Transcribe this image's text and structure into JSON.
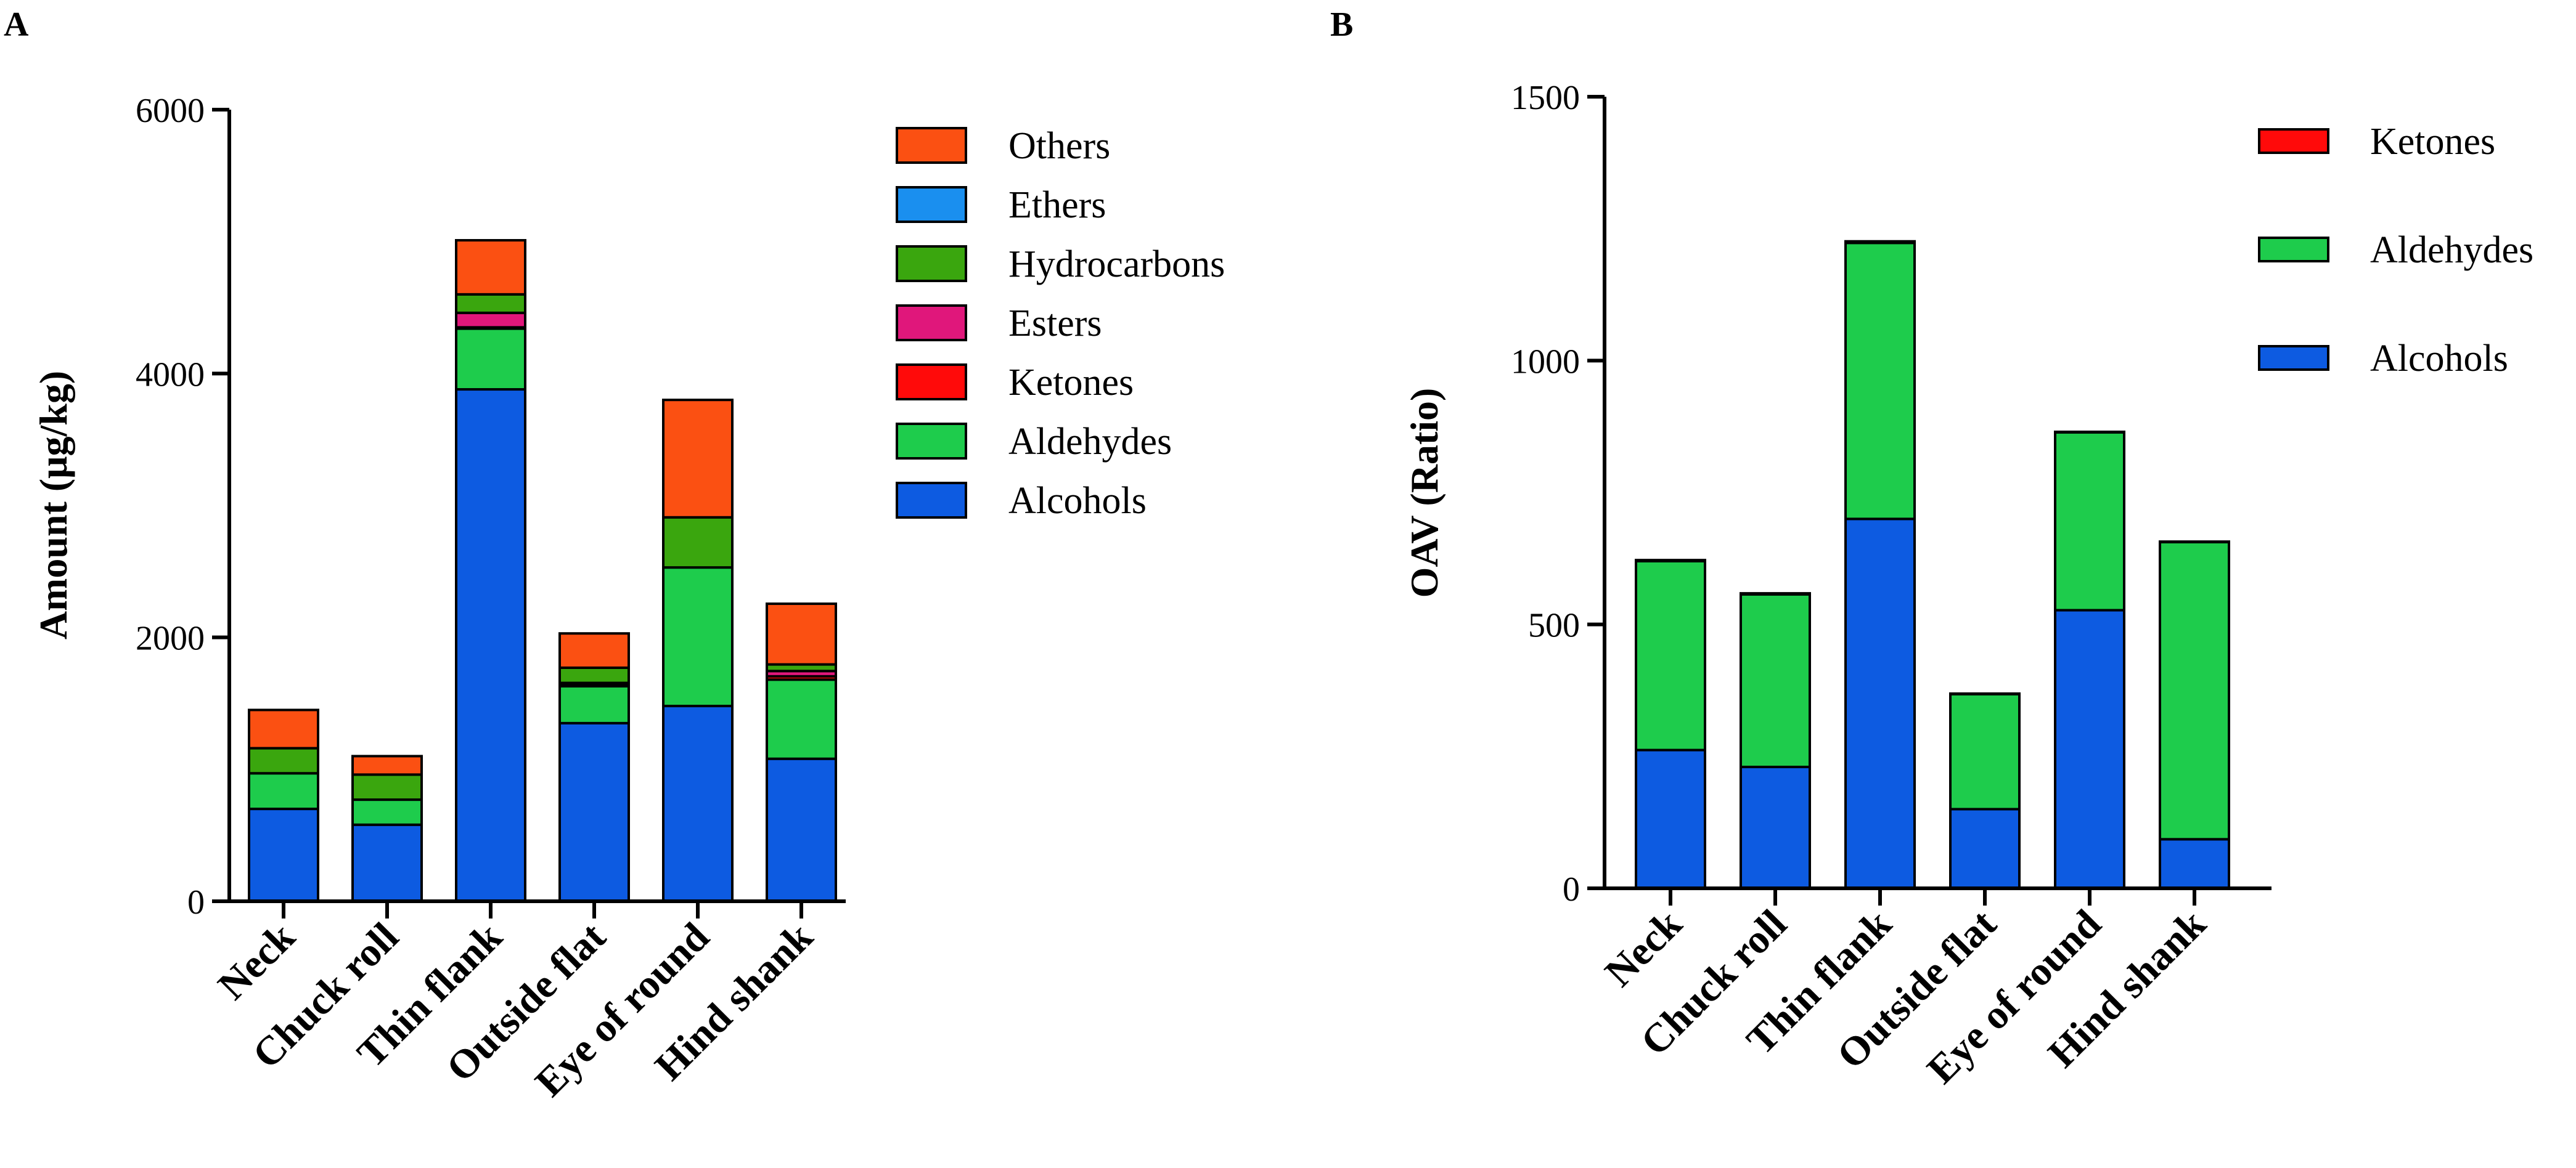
{
  "chart_data": [
    {
      "panel": "A",
      "type": "bar",
      "stacked": true,
      "title": "",
      "xlabel": "",
      "ylabel": "Amount (μg/kg)",
      "ylim": [
        0,
        6000
      ],
      "yticks": [
        0,
        2000,
        4000,
        6000
      ],
      "grid": false,
      "legend_position": "right",
      "categories": [
        "Neck",
        "Chuck roll",
        "Thin flank",
        "Outside flat",
        "Eye of round",
        "Hind shank"
      ],
      "series": [
        {
          "name": "Alcohols",
          "color": "#0d5be1",
          "values": [
            700,
            580,
            3880,
            1350,
            1480,
            1080
          ]
        },
        {
          "name": "Aldehydes",
          "color": "#1ecc4c",
          "values": [
            270,
            190,
            460,
            280,
            1050,
            600
          ]
        },
        {
          "name": "Ketones",
          "color": "#ff0a0a",
          "values": [
            0,
            0,
            10,
            15,
            0,
            25
          ]
        },
        {
          "name": "Esters",
          "color": "#e0177b",
          "values": [
            0,
            0,
            110,
            10,
            0,
            40
          ]
        },
        {
          "name": "Hydrocarbons",
          "color": "#3aa60e",
          "values": [
            190,
            190,
            140,
            115,
            380,
            50
          ]
        },
        {
          "name": "Ethers",
          "color": "#1a8fef",
          "values": [
            0,
            0,
            0,
            0,
            0,
            0
          ]
        },
        {
          "name": "Others",
          "color": "#fb5012",
          "values": [
            290,
            140,
            410,
            260,
            890,
            460
          ]
        }
      ],
      "legend_order": [
        "Others",
        "Ethers",
        "Hydrocarbons",
        "Esters",
        "Ketones",
        "Aldehydes",
        "Alcohols"
      ]
    },
    {
      "panel": "B",
      "type": "bar",
      "stacked": true,
      "title": "",
      "xlabel": "",
      "ylabel": "OAV (Ratio)",
      "ylim": [
        0,
        1500
      ],
      "yticks": [
        0,
        500,
        1000,
        1500
      ],
      "grid": false,
      "legend_position": "right",
      "categories": [
        "Neck",
        "Chuck roll",
        "Thin flank",
        "Outside flat",
        "Eye of round",
        "Hind shank"
      ],
      "series": [
        {
          "name": "Alcohols",
          "color": "#0d5be1",
          "values": [
            262,
            230,
            700,
            150,
            527,
            93
          ]
        },
        {
          "name": "Aldehydes",
          "color": "#1ecc4c",
          "values": [
            358,
            327,
            523,
            218,
            337,
            563
          ]
        },
        {
          "name": "Ketones",
          "color": "#ff0a0a",
          "values": [
            2,
            2,
            3,
            1,
            1,
            1
          ]
        }
      ],
      "legend_order": [
        "Ketones",
        "Aldehydes",
        "Alcohols"
      ]
    }
  ]
}
